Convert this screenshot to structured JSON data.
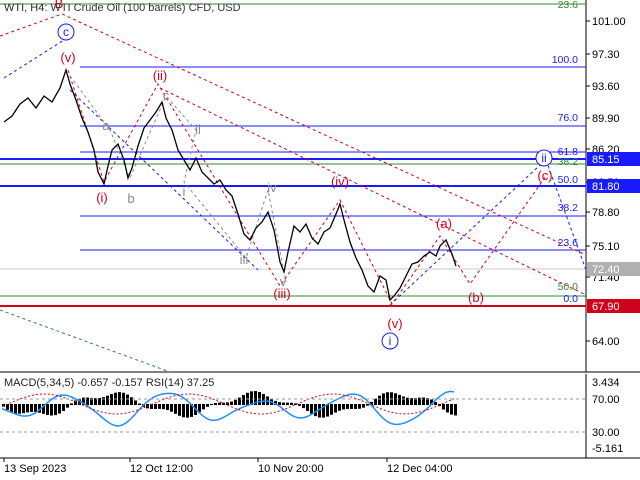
{
  "header": {
    "symbol": "WTI, H4:",
    "description": "WTI Crude Oil (100 barrels) CFD, USD"
  },
  "macd_header": "MACD(5,34,5) -0.657 -0.157 RSI(14) 37.25",
  "price_axis": [
    "101.00",
    "97.30",
    "93.60",
    "89.90",
    "86.20",
    "82.50",
    "78.80",
    "75.10",
    "71.40",
    "64.00"
  ],
  "macd_axis": [
    "3.434",
    "70.00",
    "30.00",
    "-5.161"
  ],
  "time_axis": [
    "13 Sep 2023",
    "12 Oct 12:00",
    "10 Nov 20:00",
    "12 Dec 04:00"
  ],
  "price_tags": [
    {
      "text": "85.15",
      "bg": "#1a1aff",
      "fg": "#ffffff"
    },
    {
      "text": "81.80",
      "bg": "#1a1aff",
      "fg": "#ffffff"
    },
    {
      "text": "72.40",
      "bg": "#b0b0b0",
      "fg": "#ffffff"
    },
    {
      "text": "67.90",
      "bg": "#d0021b",
      "fg": "#ffffff"
    }
  ],
  "fib_blue": [
    "100.0",
    "76.0",
    "61.8",
    "50.0",
    "38.2",
    "23.6",
    "0.0"
  ],
  "fib_green": [
    "23.6",
    "38.2",
    "50.0"
  ],
  "wave_labels": {
    "red": [
      "(v)",
      "(i)",
      "(ii)",
      "(iii)",
      "(iv)",
      "(v)",
      "(a)",
      "(b)",
      "(c)"
    ],
    "gray": [
      "c",
      "a",
      "b",
      "ii",
      "i",
      "iii",
      "iv",
      "v",
      "B"
    ],
    "circled": [
      "c",
      "i",
      "ii"
    ]
  },
  "colors": {
    "blue": "#1a1aff",
    "red": "#d0021b",
    "gray": "#8a8a8a",
    "green": "#2e8b2e",
    "price": "#000000",
    "macd_up": "#000000",
    "rsi": "#1e90ff"
  }
}
